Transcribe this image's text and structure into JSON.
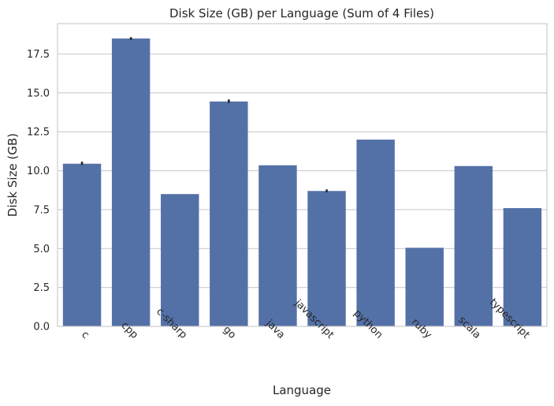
{
  "chart_data": {
    "type": "bar",
    "title": "Disk Size (GB) per Language (Sum of 4 Files)",
    "xlabel": "Language",
    "ylabel": "Disk Size (GB)",
    "categories": [
      "c",
      "cpp",
      "c-sharp",
      "go",
      "java",
      "javascript",
      "python",
      "ruby",
      "scala",
      "typescript"
    ],
    "values": [
      10.45,
      18.5,
      8.5,
      14.45,
      10.35,
      8.7,
      12.0,
      5.05,
      10.3,
      7.6
    ],
    "error_bars": [
      {
        "category": "c",
        "low": 10.38,
        "high": 10.58
      },
      {
        "category": "cpp",
        "low": 18.4,
        "high": 18.58
      },
      {
        "category": "go",
        "low": 14.35,
        "high": 14.58
      },
      {
        "category": "javascript",
        "low": 8.62,
        "high": 8.8
      }
    ],
    "yticks": [
      "0.0",
      "2.5",
      "5.0",
      "7.5",
      "10.0",
      "12.5",
      "15.0",
      "17.5"
    ],
    "ylim": [
      0,
      19.45
    ],
    "grid": "horizontal",
    "colors": {
      "bar": "#5471a7",
      "grid": "#cccccc",
      "frame": "#cccccc",
      "error": "#262626"
    }
  }
}
